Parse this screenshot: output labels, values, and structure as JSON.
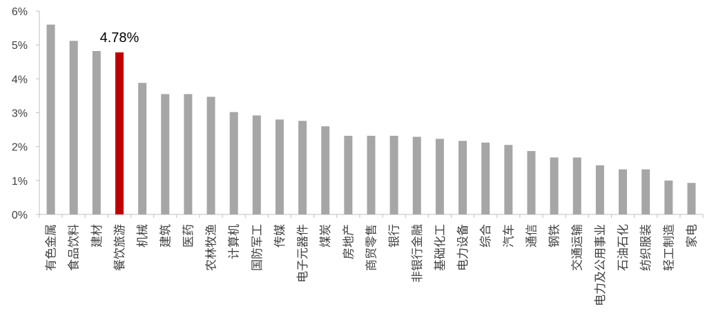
{
  "chart_data": {
    "type": "bar",
    "categories": [
      "有色金属",
      "食品饮料",
      "建材",
      "餐饮旅游",
      "机械",
      "建筑",
      "医药",
      "农林牧渔",
      "计算机",
      "国防军工",
      "传媒",
      "电子元器件",
      "煤炭",
      "房地产",
      "商贸零售",
      "银行",
      "非银行金融",
      "基础化工",
      "电力设备",
      "综合",
      "汽车",
      "通信",
      "钢铁",
      "交通运输",
      "电力及公用事业",
      "石油石化",
      "纺织服装",
      "轻工制造",
      "家电"
    ],
    "values": [
      5.6,
      5.12,
      4.82,
      4.78,
      3.88,
      3.55,
      3.55,
      3.47,
      3.02,
      2.92,
      2.8,
      2.76,
      2.6,
      2.32,
      2.32,
      2.32,
      2.29,
      2.23,
      2.17,
      2.12,
      2.05,
      1.87,
      1.68,
      1.68,
      1.45,
      1.33,
      1.33,
      1.0,
      0.93
    ],
    "highlight_index": 3,
    "highlight_label": "4.78%",
    "y_ticks": [
      "0%",
      "1%",
      "2%",
      "3%",
      "4%",
      "5%",
      "6%"
    ],
    "ylim": [
      0,
      6
    ],
    "colors": {
      "bar": "#A6A6A6",
      "highlight": "#C00000",
      "axis": "#BFBFBF"
    }
  }
}
